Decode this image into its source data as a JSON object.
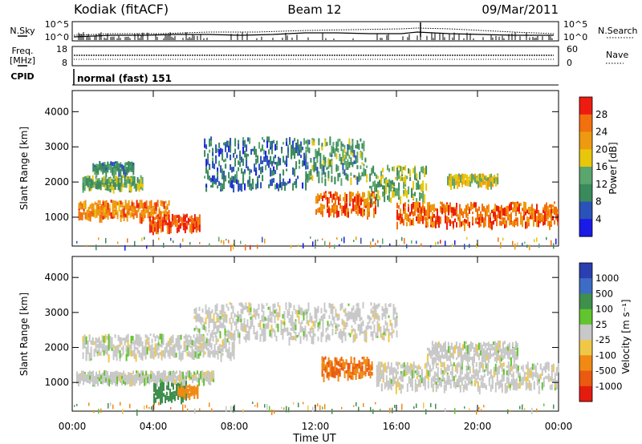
{
  "header": {
    "radar": "Kodiak (fitACF)",
    "beam": "Beam 12",
    "date": "09/Mar/2011"
  },
  "noise_panel": {
    "left_label": "N.Sky",
    "right_label": "N.Search",
    "left_ticks": [
      "10^5",
      "10^0"
    ],
    "right_ticks": [
      "10^5",
      "10^0"
    ]
  },
  "freq_panel": {
    "left_label_line1": "Freq.",
    "left_label_line2": "[MHz]",
    "right_label": "Nave",
    "left_ticks": [
      "18",
      "8"
    ],
    "right_ticks": [
      "60",
      "0"
    ]
  },
  "cpid_panel": {
    "label": "CPID",
    "value": "normal (fast) 151"
  },
  "chart_data": [
    {
      "type": "heatmap",
      "name": "power",
      "xlabel": "",
      "ylabel": "Slant Range [km]",
      "x_ticks": [
        "00:00",
        "04:00",
        "08:00",
        "12:00",
        "16:00",
        "20:00",
        "00:00"
      ],
      "x_range_hours": [
        0,
        24
      ],
      "y_ticks": [
        1000,
        2000,
        3000,
        4000
      ],
      "ylim": [
        180,
        4600
      ],
      "colorbar": {
        "label": "Power [dB]",
        "ticks": [
          "4",
          "8",
          "12",
          "16",
          "20",
          "24",
          "28"
        ],
        "colors": [
          "#1a1ae6",
          "#2a52b8",
          "#3b8a5c",
          "#5aa66e",
          "#e8c60c",
          "#ee9a10",
          "#f2700e",
          "#ee1c10"
        ]
      },
      "bands": [
        {
          "t0": 0.3,
          "t1": 4.8,
          "r0": 1050,
          "r1": 1500,
          "value": 24
        },
        {
          "t0": 0.5,
          "t1": 3.5,
          "r0": 1900,
          "r1": 2200,
          "value": 14
        },
        {
          "t0": 1.0,
          "t1": 3.0,
          "r0": 2350,
          "r1": 2600,
          "value": 10
        },
        {
          "t0": 3.8,
          "t1": 6.3,
          "r0": 700,
          "r1": 1100,
          "value": 28
        },
        {
          "t0": 6.5,
          "t1": 11.5,
          "r0": 1900,
          "r1": 3300,
          "value": 8
        },
        {
          "t0": 11.5,
          "t1": 14.5,
          "r0": 2100,
          "r1": 3300,
          "value": 12
        },
        {
          "t0": 12.0,
          "t1": 15.0,
          "r0": 1150,
          "r1": 1750,
          "value": 26
        },
        {
          "t0": 14.5,
          "t1": 17.5,
          "r0": 1500,
          "r1": 2500,
          "value": 14
        },
        {
          "t0": 16.0,
          "t1": 24.0,
          "r0": 850,
          "r1": 1450,
          "value": 26
        },
        {
          "t0": 18.5,
          "t1": 21.0,
          "r0": 2000,
          "r1": 2250,
          "value": 18
        }
      ]
    },
    {
      "type": "heatmap",
      "name": "velocity",
      "xlabel": "Time UT",
      "ylabel": "Slant Range [km]",
      "x_ticks": [
        "00:00",
        "04:00",
        "08:00",
        "12:00",
        "16:00",
        "20:00",
        "00:00"
      ],
      "x_range_hours": [
        0,
        24
      ],
      "y_ticks": [
        1000,
        2000,
        3000,
        4000
      ],
      "ylim": [
        180,
        4600
      ],
      "colorbar": {
        "label": "Velocity [m s⁻¹]",
        "ticks": [
          "1000",
          "500",
          "100",
          "25",
          "-25",
          "-100",
          "-500",
          "-1000"
        ],
        "colors": [
          "#2a3fb0",
          "#3c6cc4",
          "#3f8f4d",
          "#62c42e",
          "#c8c8c8",
          "#f0c848",
          "#f08a14",
          "#ea5a10",
          "#e41c10"
        ]
      },
      "bands": [
        {
          "t0": 0.2,
          "t1": 7.0,
          "r0": 1100,
          "r1": 1350,
          "value": 0
        },
        {
          "t0": 0.5,
          "t1": 8.0,
          "r0": 1800,
          "r1": 2400,
          "value": 0
        },
        {
          "t0": 6.0,
          "t1": 16.0,
          "r0": 2300,
          "r1": 3300,
          "value": 0
        },
        {
          "t0": 4.0,
          "t1": 5.6,
          "r0": 550,
          "r1": 1050,
          "value": 150
        },
        {
          "t0": 5.2,
          "t1": 6.2,
          "r0": 700,
          "r1": 950,
          "value": -200
        },
        {
          "t0": 12.3,
          "t1": 14.8,
          "r0": 1250,
          "r1": 1750,
          "value": -300
        },
        {
          "t0": 15.0,
          "t1": 24.0,
          "r0": 900,
          "r1": 1600,
          "value": 0
        },
        {
          "t0": 17.5,
          "t1": 22.0,
          "r0": 1700,
          "r1": 2200,
          "value": 0
        }
      ]
    }
  ]
}
